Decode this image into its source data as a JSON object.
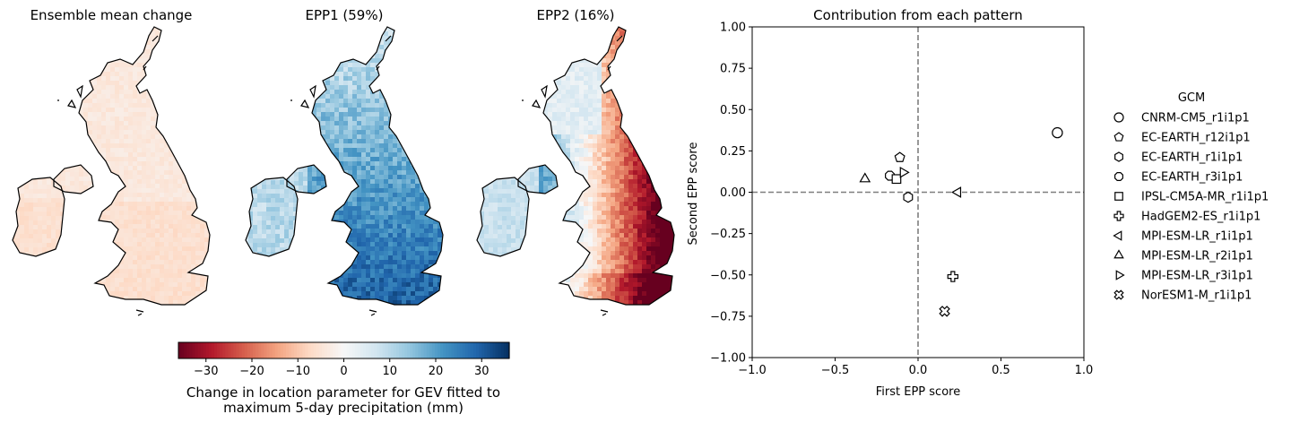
{
  "maps": {
    "panels": [
      {
        "title": "Ensemble mean change",
        "kind": "mean"
      },
      {
        "title": "EPP1 (59%)",
        "kind": "epp1"
      },
      {
        "title": "EPP2 (16%)",
        "kind": "epp2"
      }
    ],
    "colorbar": {
      "cmap": "RdBu",
      "range": [
        -36,
        36
      ],
      "ticks": [
        -30,
        -20,
        -10,
        0,
        10,
        20,
        30
      ],
      "tick_labels": [
        "−30",
        "−20",
        "−10",
        "0",
        "10",
        "20",
        "30"
      ],
      "label_line1": "Change in location parameter for GEV fitted to",
      "label_line2": "maximum 5-day precipitation (mm)"
    }
  },
  "chart_data": {
    "type": "scatter",
    "title": "Contribution from each pattern",
    "xlabel": "First EPP score",
    "ylabel": "Second EPP score",
    "xlim": [
      -1.0,
      1.0
    ],
    "ylim": [
      -1.0,
      1.0
    ],
    "xticks": [
      -1.0,
      -0.5,
      0.0,
      0.5,
      1.0
    ],
    "xtick_labels": [
      "−1.0",
      "−0.5",
      "0.0",
      "0.5",
      "1.0"
    ],
    "yticks": [
      1.0,
      0.75,
      0.5,
      0.25,
      0.0,
      -0.25,
      -0.5,
      -0.75,
      -1.0
    ],
    "ytick_labels": [
      "1.00",
      "0.75",
      "0.50",
      "0.25",
      "0.00",
      "−0.25",
      "−0.50",
      "−0.75",
      "−1.00"
    ],
    "reference_lines": {
      "x": 0,
      "y": 0,
      "style": "dashed"
    },
    "legend": {
      "title": "GCM",
      "position": "right"
    },
    "series": [
      {
        "name": "CNRM-CM5_r1i1p1",
        "marker": "circle",
        "x": 0.84,
        "y": 0.36
      },
      {
        "name": "EC-EARTH_r12i1p1",
        "marker": "pentagon",
        "x": -0.11,
        "y": 0.21
      },
      {
        "name": "EC-EARTH_r1i1p1",
        "marker": "hexagon",
        "x": -0.06,
        "y": -0.03
      },
      {
        "name": "EC-EARTH_r3i1p1",
        "marker": "octagon",
        "x": -0.17,
        "y": 0.1
      },
      {
        "name": "IPSL-CM5A-MR_r1i1p1",
        "marker": "square",
        "x": -0.13,
        "y": 0.08
      },
      {
        "name": "HadGEM2-ES_r1i1p1",
        "marker": "plus",
        "x": 0.21,
        "y": -0.51
      },
      {
        "name": "MPI-ESM-LR_r1i1p1",
        "marker": "triangle-left",
        "x": 0.24,
        "y": 0.0
      },
      {
        "name": "MPI-ESM-LR_r2i1p1",
        "marker": "triangle-up",
        "x": -0.32,
        "y": 0.08
      },
      {
        "name": "MPI-ESM-LR_r3i1p1",
        "marker": "triangle-right",
        "x": -0.09,
        "y": 0.12
      },
      {
        "name": "NorESM1-M_r1i1p1",
        "marker": "x-filled",
        "x": 0.16,
        "y": -0.72
      }
    ]
  }
}
